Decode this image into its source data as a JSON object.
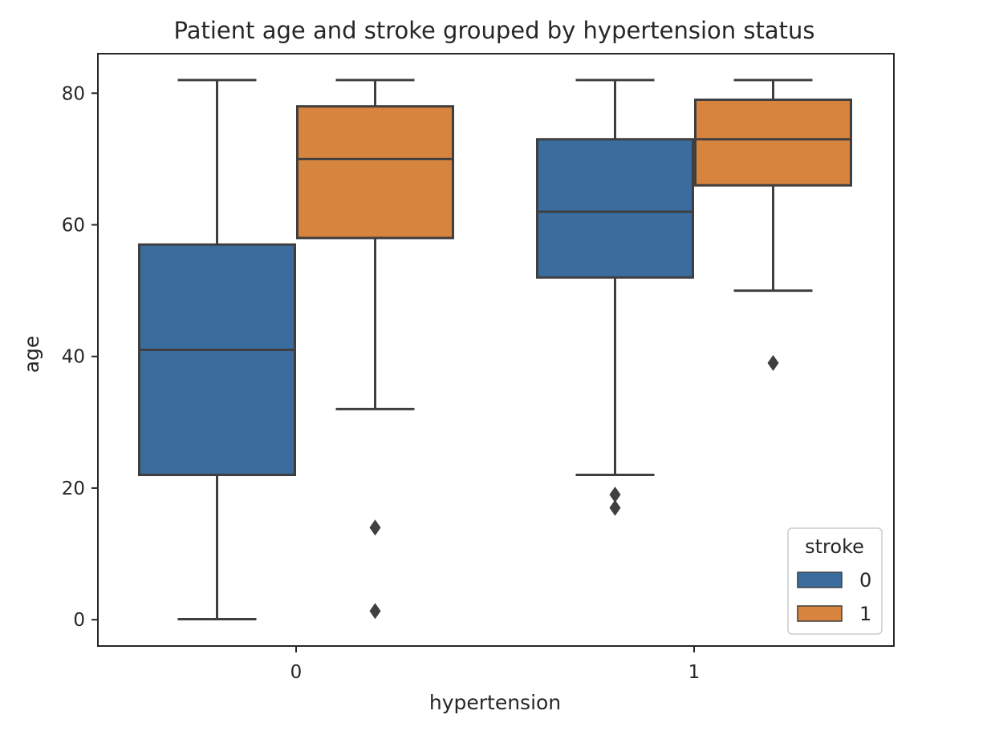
{
  "chart_data": {
    "type": "box",
    "title": "Patient age and stroke grouped by hypertension status",
    "xlabel": "hypertension",
    "ylabel": "age",
    "categories": [
      "0",
      "1"
    ],
    "y_ticks": [
      "0",
      "20",
      "40",
      "60",
      "80"
    ],
    "ylim": [
      -4,
      86
    ],
    "legend": {
      "title": "stroke",
      "placement": "lower-right",
      "entries": [
        "0",
        "1"
      ]
    },
    "series": [
      {
        "name": "0",
        "color": "#3a6c9e",
        "boxes": [
          {
            "category": "0",
            "whisker_low": 0.08,
            "q1": 22,
            "median": 41,
            "q3": 57,
            "whisker_high": 82,
            "outliers": []
          },
          {
            "category": "1",
            "whisker_low": 22,
            "q1": 52,
            "median": 62,
            "q3": 73,
            "whisker_high": 82,
            "outliers": [
              19,
              17
            ]
          }
        ]
      },
      {
        "name": "1",
        "color": "#d6843e",
        "boxes": [
          {
            "category": "0",
            "whisker_low": 32,
            "q1": 58,
            "median": 70,
            "q3": 78,
            "whisker_high": 82,
            "outliers": [
              14,
              1.32
            ]
          },
          {
            "category": "1",
            "whisker_low": 50,
            "q1": 66,
            "median": 73,
            "q3": 79,
            "whisker_high": 82,
            "outliers": [
              39
            ]
          }
        ]
      }
    ],
    "grid": false,
    "colors": {
      "axes": "#262626",
      "lines": "#3f3f3f"
    }
  }
}
